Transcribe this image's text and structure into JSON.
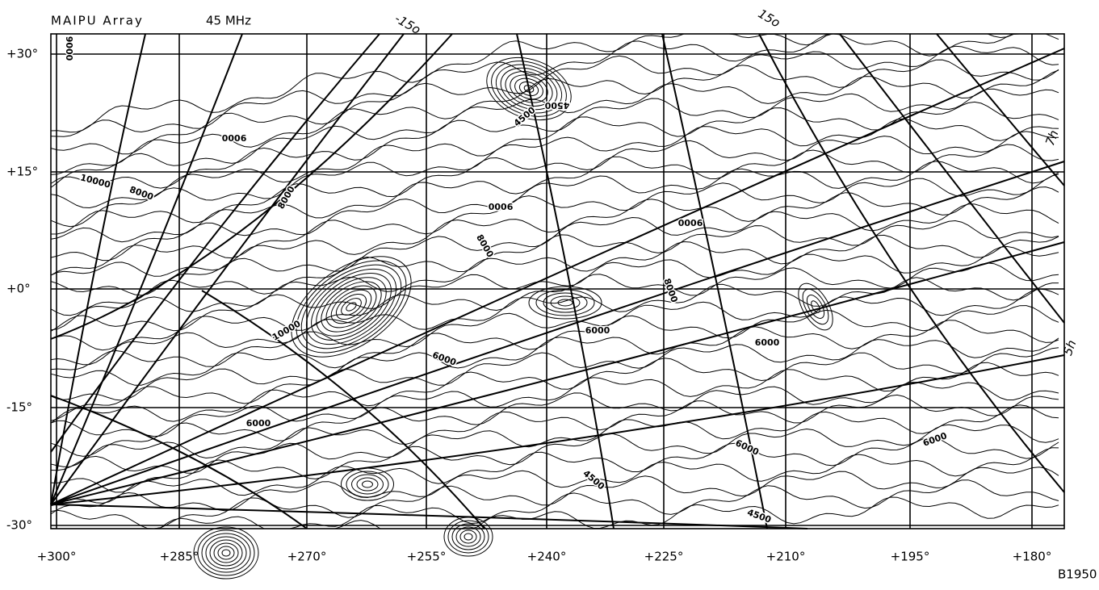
{
  "header": {
    "title": "MAIPU Array",
    "frequency": "45 MHz"
  },
  "axes": {
    "x_labels": [
      "+300°",
      "+285°",
      "+270°",
      "+255°",
      "+240°",
      "+225°",
      "+210°",
      "+195°",
      "+180°"
    ],
    "y_labels": [
      "+30°",
      "+15°",
      "+0°",
      "-15°",
      "-30°"
    ]
  },
  "grid_labels": [
    "-15o",
    "15o",
    "7h",
    "5h"
  ],
  "contour_labels": [
    "9000",
    "9000",
    "8000",
    "10000",
    "8000",
    "9000",
    "9000",
    "8000",
    "6000",
    "6000",
    "6000",
    "6000",
    "4500",
    "4500",
    "6000",
    "8000",
    "4500",
    "4500",
    "10000",
    "6000"
  ],
  "footer": {
    "epoch": "B1950"
  }
}
